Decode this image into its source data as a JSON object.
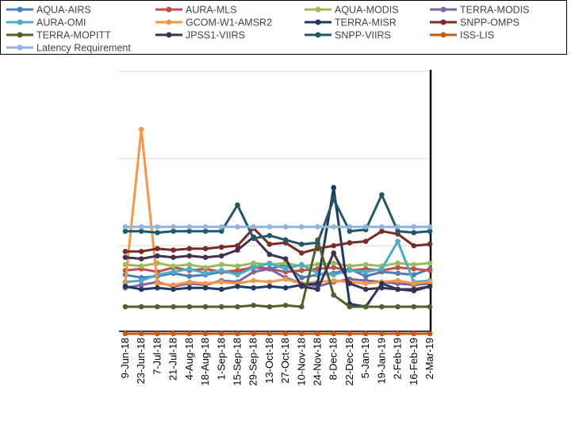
{
  "chart_data": {
    "type": "line",
    "title": "",
    "xlabel": "",
    "ylabel": "",
    "y_tick_labels_visible": false,
    "ylim": [
      0,
      180
    ],
    "grid": true,
    "legend_position": "top",
    "categories": [
      "9-Jun-18",
      "23-Jun-18",
      "7-Jul-18",
      "21-Jul-18",
      "4-Aug-18",
      "18-Aug-18",
      "1-Sep-18",
      "15-Sep-18",
      "29-Sep-18",
      "13-Oct-18",
      "27-Oct-18",
      "10-Nov-18",
      "24-Nov-18",
      "8-Dec-18",
      "22-Dec-18",
      "5-Jan-19",
      "19-Jan-19",
      "2-Feb-19",
      "16-Feb-19",
      "2-Mar-19"
    ],
    "series": [
      {
        "name": "AQUA-AIRS",
        "color": "#4a7ebb",
        "values": [
          40,
          38,
          39,
          41,
          39,
          40,
          42,
          41,
          46,
          44,
          47,
          38,
          40,
          41,
          44,
          39,
          42,
          41,
          40,
          44
        ]
      },
      {
        "name": "AURA-MLS",
        "color": "#c0504d",
        "values": [
          43,
          44,
          42,
          45,
          43,
          44,
          42,
          43,
          45,
          44,
          42,
          43,
          44,
          45,
          43,
          44,
          43,
          45,
          44,
          43
        ]
      },
      {
        "name": "AQUA-MODIS",
        "color": "#9bbb59",
        "values": [
          47,
          46,
          48,
          46,
          47,
          45,
          47,
          46,
          48,
          47,
          48,
          46,
          47,
          48,
          46,
          47,
          46,
          48,
          47,
          48
        ]
      },
      {
        "name": "TERRA-MODIS",
        "color": "#8064a2",
        "values": [
          31,
          33,
          35,
          32,
          34,
          33,
          36,
          35,
          42,
          44,
          38,
          34,
          32,
          35,
          37,
          36,
          35,
          34,
          33,
          34
        ]
      },
      {
        "name": "AURA-OMI",
        "color": "#4bacc6",
        "values": [
          35,
          36,
          40,
          42,
          44,
          41,
          43,
          40,
          45,
          48,
          44,
          47,
          41,
          40,
          43,
          42,
          44,
          63,
          35,
          36
        ]
      },
      {
        "name": "GCOM-W1-AMSR2",
        "color": "#f79646",
        "values": [
          34,
          140,
          34,
          33,
          35,
          34,
          35,
          34,
          36,
          35,
          37,
          34,
          35,
          36,
          35,
          34,
          35,
          36,
          34,
          35
        ]
      },
      {
        "name": "TERRA-MISR",
        "color": "#1f3864",
        "values": [
          32,
          30,
          31,
          30,
          31,
          31,
          30,
          32,
          31,
          32,
          31,
          33,
          34,
          100,
          20,
          18,
          34,
          30,
          29,
          32
        ]
      },
      {
        "name": "SNPP-OMPS",
        "color": "#7b2929",
        "values": [
          56,
          56,
          58,
          57,
          58,
          58,
          59,
          60,
          72,
          61,
          62,
          55,
          58,
          60,
          62,
          63,
          70,
          68,
          60,
          61
        ]
      },
      {
        "name": "TERRA-MOPITT",
        "color": "#4f6228",
        "values": [
          18,
          18,
          18,
          18,
          18,
          18,
          18,
          18,
          19,
          18,
          19,
          18,
          64,
          26,
          18,
          18,
          18,
          18,
          18,
          18
        ]
      },
      {
        "name": "JPSS1-VIIRS",
        "color": "#403151",
        "values": [
          52,
          51,
          53,
          52,
          53,
          52,
          53,
          57,
          66,
          54,
          51,
          32,
          30,
          55,
          34,
          30,
          31,
          30,
          30,
          32
        ]
      },
      {
        "name": "SNPP-VIIRS",
        "color": "#215868",
        "values": [
          70,
          70,
          69,
          70,
          70,
          70,
          70,
          88,
          65,
          67,
          64,
          61,
          62,
          92,
          70,
          71,
          95,
          70,
          69,
          70
        ]
      },
      {
        "name": "ISS-LIS",
        "color": "#c55a11",
        "values": [
          -7,
          -7,
          -7,
          -7,
          -7,
          -7,
          -7,
          -7,
          -7,
          -7,
          -7,
          -7,
          -7,
          -7,
          -7,
          -7,
          -7,
          -7,
          -7,
          -7
        ]
      },
      {
        "name": "Latency Requirement",
        "color": "#8eb4e3",
        "values": [
          73,
          73,
          73,
          73,
          73,
          73,
          73,
          73,
          73,
          73,
          73,
          73,
          73,
          73,
          73,
          73,
          73,
          73,
          73,
          73
        ]
      }
    ]
  }
}
